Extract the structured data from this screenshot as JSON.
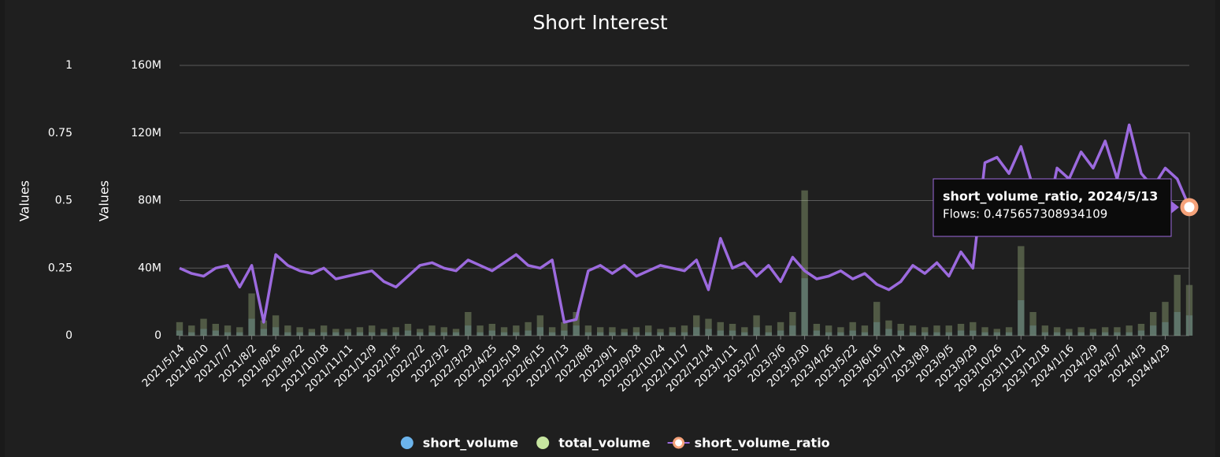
{
  "chart_data": {
    "type": "combo",
    "title": "Short Interest",
    "y_label": "Values",
    "y2_label": "Values",
    "categories": [
      "2021/5/14",
      null,
      "2021/6/10",
      null,
      "2021/7/7",
      null,
      "2021/8/2",
      null,
      "2021/8/26",
      null,
      "2021/9/22",
      null,
      "2021/10/18",
      null,
      "2021/11/11",
      null,
      "2021/12/9",
      null,
      "2022/1/5",
      null,
      "2022/2/2",
      null,
      "2022/3/2",
      null,
      "2022/3/29",
      null,
      "2022/4/25",
      null,
      "2022/5/19",
      null,
      "2022/6/15",
      null,
      "2022/7/13",
      null,
      "2022/8/8",
      null,
      "2022/9/1",
      null,
      "2022/9/28",
      null,
      "2022/10/24",
      null,
      "2022/11/17",
      null,
      "2022/12/14",
      null,
      "2023/1/11",
      null,
      "2023/2/7",
      null,
      "2023/3/6",
      null,
      "2023/3/30",
      null,
      "2023/4/26",
      null,
      "2023/5/22",
      null,
      "2023/6/16",
      null,
      "2023/7/14",
      null,
      "2023/8/9",
      null,
      "2023/9/5",
      null,
      "2023/9/29",
      null,
      "2023/10/26",
      null,
      "2023/11/21",
      null,
      "2023/12/18",
      null,
      "2024/1/16",
      null,
      "2024/2/9",
      null,
      "2024/3/7",
      null,
      "2024/4/3",
      null,
      "2024/4/29",
      null,
      null
    ],
    "series": [
      {
        "name": "short_volume",
        "type": "bar",
        "axis": "y",
        "color": "#6cb4ec",
        "values": [
          3000000,
          2000000,
          4000000,
          3000000,
          2000000,
          2000000,
          10000000,
          4000000,
          5000000,
          2000000,
          2000000,
          2000000,
          2000000,
          2000000,
          2000000,
          2000000,
          2000000,
          2000000,
          2000000,
          3000000,
          2000000,
          2000000,
          2000000,
          2000000,
          6000000,
          2000000,
          3000000,
          2000000,
          2000000,
          3000000,
          5000000,
          2000000,
          3000000,
          6000000,
          2000000,
          2000000,
          2000000,
          2000000,
          2000000,
          2000000,
          2000000,
          2000000,
          2000000,
          5000000,
          4000000,
          3000000,
          3000000,
          2000000,
          5000000,
          2000000,
          3000000,
          6000000,
          34000000,
          3000000,
          2000000,
          2000000,
          3000000,
          2000000,
          8000000,
          4000000,
          3000000,
          2000000,
          2000000,
          2000000,
          2000000,
          3000000,
          3000000,
          2000000,
          2000000,
          2000000,
          21000000,
          6000000,
          2000000,
          2000000,
          2000000,
          2000000,
          2000000,
          2000000,
          2000000,
          2000000,
          3000000,
          6000000,
          8000000,
          14000000,
          12000000
        ]
      },
      {
        "name": "total_volume",
        "type": "bar",
        "axis": "y",
        "color": "#c7e6a0",
        "values": [
          8000000,
          6000000,
          10000000,
          7000000,
          6000000,
          5000000,
          25000000,
          9000000,
          12000000,
          6000000,
          5000000,
          4000000,
          6000000,
          4000000,
          4000000,
          5000000,
          6000000,
          4000000,
          5000000,
          7000000,
          4000000,
          6000000,
          5000000,
          4000000,
          14000000,
          6000000,
          7000000,
          5000000,
          6000000,
          8000000,
          12000000,
          5000000,
          8000000,
          14000000,
          6000000,
          5000000,
          5000000,
          4000000,
          5000000,
          6000000,
          4000000,
          5000000,
          6000000,
          12000000,
          10000000,
          8000000,
          7000000,
          5000000,
          12000000,
          6000000,
          8000000,
          14000000,
          86000000,
          7000000,
          6000000,
          5000000,
          8000000,
          6000000,
          20000000,
          9000000,
          7000000,
          6000000,
          5000000,
          6000000,
          6000000,
          7000000,
          8000000,
          5000000,
          4000000,
          5000000,
          53000000,
          14000000,
          6000000,
          5000000,
          4000000,
          5000000,
          4000000,
          5000000,
          5000000,
          6000000,
          7000000,
          14000000,
          20000000,
          36000000,
          30000000
        ]
      },
      {
        "name": "short_volume_ratio",
        "type": "line",
        "axis": "y2",
        "color": "#9c6ade",
        "marker_color": "#f5a27a",
        "values": [
          0.25,
          0.23,
          0.22,
          0.25,
          0.26,
          0.18,
          0.26,
          0.05,
          0.3,
          0.26,
          0.24,
          0.23,
          0.25,
          0.21,
          0.22,
          0.23,
          0.24,
          0.2,
          0.18,
          0.22,
          0.26,
          0.27,
          0.25,
          0.24,
          0.28,
          0.26,
          0.24,
          0.27,
          0.3,
          0.26,
          0.25,
          0.28,
          0.05,
          0.06,
          0.24,
          0.26,
          0.23,
          0.26,
          0.22,
          0.24,
          0.26,
          0.25,
          0.24,
          0.28,
          0.17,
          0.36,
          0.25,
          0.27,
          0.22,
          0.26,
          0.2,
          0.29,
          0.24,
          0.21,
          0.22,
          0.24,
          0.21,
          0.23,
          0.19,
          0.17,
          0.2,
          0.26,
          0.23,
          0.27,
          0.22,
          0.31,
          0.25,
          0.64,
          0.66,
          0.6,
          0.7,
          0.55,
          0.4,
          0.62,
          0.58,
          0.68,
          0.62,
          0.72,
          0.58,
          0.78,
          0.6,
          0.55,
          0.62,
          0.58,
          0.475657308934109
        ]
      }
    ],
    "ylim": [
      0,
      160000000
    ],
    "yticks": [
      0,
      {
        "value": 40000000,
        "label": "40M"
      },
      {
        "value": 80000000,
        "label": "80M"
      },
      {
        "value": 120000000,
        "label": "120M"
      },
      {
        "value": 160000000,
        "label": "160M"
      }
    ],
    "y2lim": [
      0,
      1
    ],
    "y2ticks": [
      0,
      0.25,
      0.5,
      0.75,
      1
    ],
    "grid": true,
    "legend": "bottom",
    "tooltip": {
      "title": "short_volume_ratio, 2024/5/13",
      "text": "Flows: 0.475657308934109"
    }
  }
}
